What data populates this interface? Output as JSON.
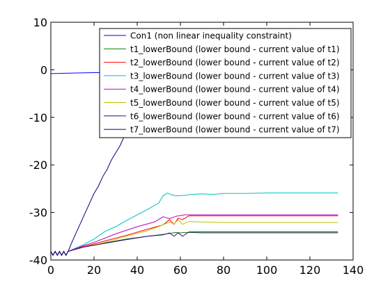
{
  "chart_data": {
    "type": "line",
    "xlim": [
      0,
      140
    ],
    "ylim": [
      -40,
      10
    ],
    "xticks": [
      0,
      20,
      40,
      60,
      80,
      100,
      120,
      140
    ],
    "yticks": [
      10,
      0,
      -10,
      -20,
      -30,
      -40
    ],
    "grid": false,
    "legend_position": "top-right",
    "series": [
      {
        "name": "Con1 (non linear inequality constraint)",
        "color": "#0000ff",
        "points": [
          [
            0,
            -0.8
          ],
          [
            8,
            -0.7
          ],
          [
            20,
            -0.6
          ],
          [
            35,
            -0.5
          ],
          [
            50,
            -0.5
          ],
          [
            60,
            -0.5
          ],
          [
            61,
            -0.5
          ]
        ]
      },
      {
        "name": "t1_lowerBound (lower bound - current value of t1)",
        "color": "#008000",
        "points": [
          [
            0,
            -38.2
          ],
          [
            1,
            -39
          ],
          [
            2,
            -38.2
          ],
          [
            3,
            -39
          ],
          [
            4,
            -38.2
          ],
          [
            5,
            -39
          ],
          [
            6,
            -38.2
          ],
          [
            7,
            -39
          ],
          [
            8,
            -38.2
          ],
          [
            15,
            -37.2
          ],
          [
            25,
            -36.4
          ],
          [
            35,
            -35.6
          ],
          [
            45,
            -35
          ],
          [
            52,
            -34.6
          ],
          [
            55,
            -34.4
          ],
          [
            58,
            -34.2
          ],
          [
            60,
            -34.3
          ],
          [
            62,
            -34.2
          ],
          [
            65,
            -34.2
          ],
          [
            70,
            -34.3
          ],
          [
            80,
            -34.3
          ],
          [
            90,
            -34.3
          ],
          [
            100,
            -34.3
          ],
          [
            110,
            -34.3
          ],
          [
            120,
            -34.3
          ],
          [
            133,
            -34.3
          ]
        ]
      },
      {
        "name": "t2_lowerBound (lower bound - current value of t2)",
        "color": "#ff0000",
        "points": [
          [
            0,
            -38.2
          ],
          [
            1,
            -39
          ],
          [
            2,
            -38.2
          ],
          [
            3,
            -39
          ],
          [
            4,
            -38.2
          ],
          [
            5,
            -39
          ],
          [
            6,
            -38.2
          ],
          [
            7,
            -39
          ],
          [
            8,
            -38.2
          ],
          [
            15,
            -37.2
          ],
          [
            25,
            -36
          ],
          [
            35,
            -34.8
          ],
          [
            45,
            -33.5
          ],
          [
            52,
            -32.6
          ],
          [
            55,
            -31.5
          ],
          [
            57,
            -32.5
          ],
          [
            59,
            -31.2
          ],
          [
            61,
            -31.5
          ],
          [
            64,
            -30.7
          ],
          [
            70,
            -30.7
          ],
          [
            80,
            -30.7
          ],
          [
            90,
            -30.7
          ],
          [
            100,
            -30.7
          ],
          [
            110,
            -30.7
          ],
          [
            120,
            -30.7
          ],
          [
            133,
            -30.7
          ]
        ]
      },
      {
        "name": "t3_lowerBound (lower bound - current value of t3)",
        "color": "#00bfbf",
        "points": [
          [
            0,
            -38.2
          ],
          [
            1,
            -39
          ],
          [
            2,
            -38.2
          ],
          [
            3,
            -39
          ],
          [
            4,
            -38.2
          ],
          [
            5,
            -39
          ],
          [
            6,
            -38.2
          ],
          [
            7,
            -39
          ],
          [
            8,
            -38.2
          ],
          [
            15,
            -36.8
          ],
          [
            20,
            -35.6
          ],
          [
            25,
            -34
          ],
          [
            30,
            -33
          ],
          [
            35,
            -31.7
          ],
          [
            40,
            -30.5
          ],
          [
            45,
            -29.3
          ],
          [
            50,
            -28
          ],
          [
            52,
            -26.5
          ],
          [
            54,
            -25.9
          ],
          [
            56,
            -26.3
          ],
          [
            58,
            -26.5
          ],
          [
            62,
            -26.4
          ],
          [
            65,
            -26.2
          ],
          [
            70,
            -26.1
          ],
          [
            75,
            -26.2
          ],
          [
            80,
            -26
          ],
          [
            90,
            -26
          ],
          [
            100,
            -25.9
          ],
          [
            110,
            -25.9
          ],
          [
            120,
            -25.9
          ],
          [
            133,
            -25.9
          ]
        ]
      },
      {
        "name": "t4_lowerBound (lower bound - current value of t4)",
        "color": "#bf00bf",
        "points": [
          [
            0,
            -38.2
          ],
          [
            1,
            -39
          ],
          [
            2,
            -38.2
          ],
          [
            3,
            -39
          ],
          [
            4,
            -38.2
          ],
          [
            5,
            -39
          ],
          [
            6,
            -38.2
          ],
          [
            7,
            -39
          ],
          [
            8,
            -38.2
          ],
          [
            15,
            -37
          ],
          [
            20,
            -36.3
          ],
          [
            30,
            -34.5
          ],
          [
            40,
            -33
          ],
          [
            48,
            -32
          ],
          [
            52,
            -30.9
          ],
          [
            55,
            -31.3
          ],
          [
            58,
            -30.8
          ],
          [
            62,
            -30.5
          ],
          [
            70,
            -30.5
          ],
          [
            80,
            -30.5
          ],
          [
            90,
            -30.5
          ],
          [
            100,
            -30.5
          ],
          [
            110,
            -30.5
          ],
          [
            120,
            -30.5
          ],
          [
            133,
            -30.5
          ]
        ]
      },
      {
        "name": "t5_lowerBound (lower bound - current value of t5)",
        "color": "#bfbf00",
        "points": [
          [
            0,
            -38.2
          ],
          [
            1,
            -39
          ],
          [
            2,
            -38.2
          ],
          [
            3,
            -39
          ],
          [
            4,
            -38.2
          ],
          [
            5,
            -39
          ],
          [
            6,
            -38.2
          ],
          [
            7,
            -39
          ],
          [
            8,
            -38.2
          ],
          [
            15,
            -37.3
          ],
          [
            25,
            -36.3
          ],
          [
            35,
            -35
          ],
          [
            45,
            -33.8
          ],
          [
            52,
            -32.6
          ],
          [
            55,
            -32
          ],
          [
            57,
            -32.4
          ],
          [
            59,
            -31.5
          ],
          [
            61,
            -32.5
          ],
          [
            64,
            -31.9
          ],
          [
            70,
            -32
          ],
          [
            80,
            -32.1
          ],
          [
            90,
            -32.1
          ],
          [
            100,
            -32.1
          ],
          [
            110,
            -32.1
          ],
          [
            120,
            -32.1
          ],
          [
            133,
            -32.1
          ]
        ]
      },
      {
        "name": "t6_lowerBound (lower bound - current value of t6)",
        "color": "#3f0080",
        "points": [
          [
            0,
            -38.2
          ],
          [
            1,
            -39
          ],
          [
            2,
            -38.2
          ],
          [
            3,
            -39
          ],
          [
            4,
            -38.2
          ],
          [
            5,
            -39
          ],
          [
            6,
            -38.2
          ],
          [
            7,
            -39
          ],
          [
            8,
            -38.2
          ],
          [
            15,
            -37.3
          ],
          [
            25,
            -36.5
          ],
          [
            35,
            -35.7
          ],
          [
            45,
            -35
          ],
          [
            52,
            -34.7
          ],
          [
            55,
            -34.3
          ],
          [
            57,
            -35
          ],
          [
            59,
            -34.3
          ],
          [
            61,
            -35
          ],
          [
            64,
            -34.1
          ],
          [
            70,
            -34.1
          ],
          [
            80,
            -34.1
          ],
          [
            90,
            -34.1
          ],
          [
            100,
            -34.1
          ],
          [
            110,
            -34.1
          ],
          [
            120,
            -34.1
          ],
          [
            133,
            -34.1
          ]
        ]
      },
      {
        "name": "t7_lowerBound (lower bound - current value of t7)",
        "color": "#00007f",
        "points": [
          [
            0,
            -38.2
          ],
          [
            1,
            -39
          ],
          [
            2,
            -38.2
          ],
          [
            3,
            -39
          ],
          [
            4,
            -38.2
          ],
          [
            5,
            -39
          ],
          [
            6,
            -38.2
          ],
          [
            7,
            -39
          ],
          [
            8,
            -38.2
          ],
          [
            10,
            -36
          ],
          [
            12,
            -34
          ],
          [
            14,
            -32
          ],
          [
            16,
            -30
          ],
          [
            18,
            -28
          ],
          [
            20,
            -26
          ],
          [
            22,
            -24.5
          ],
          [
            24,
            -22.5
          ],
          [
            26,
            -21
          ],
          [
            28,
            -19
          ],
          [
            30,
            -17.5
          ],
          [
            32,
            -16
          ],
          [
            34,
            -14
          ],
          [
            35,
            -12.2
          ]
        ]
      }
    ]
  }
}
